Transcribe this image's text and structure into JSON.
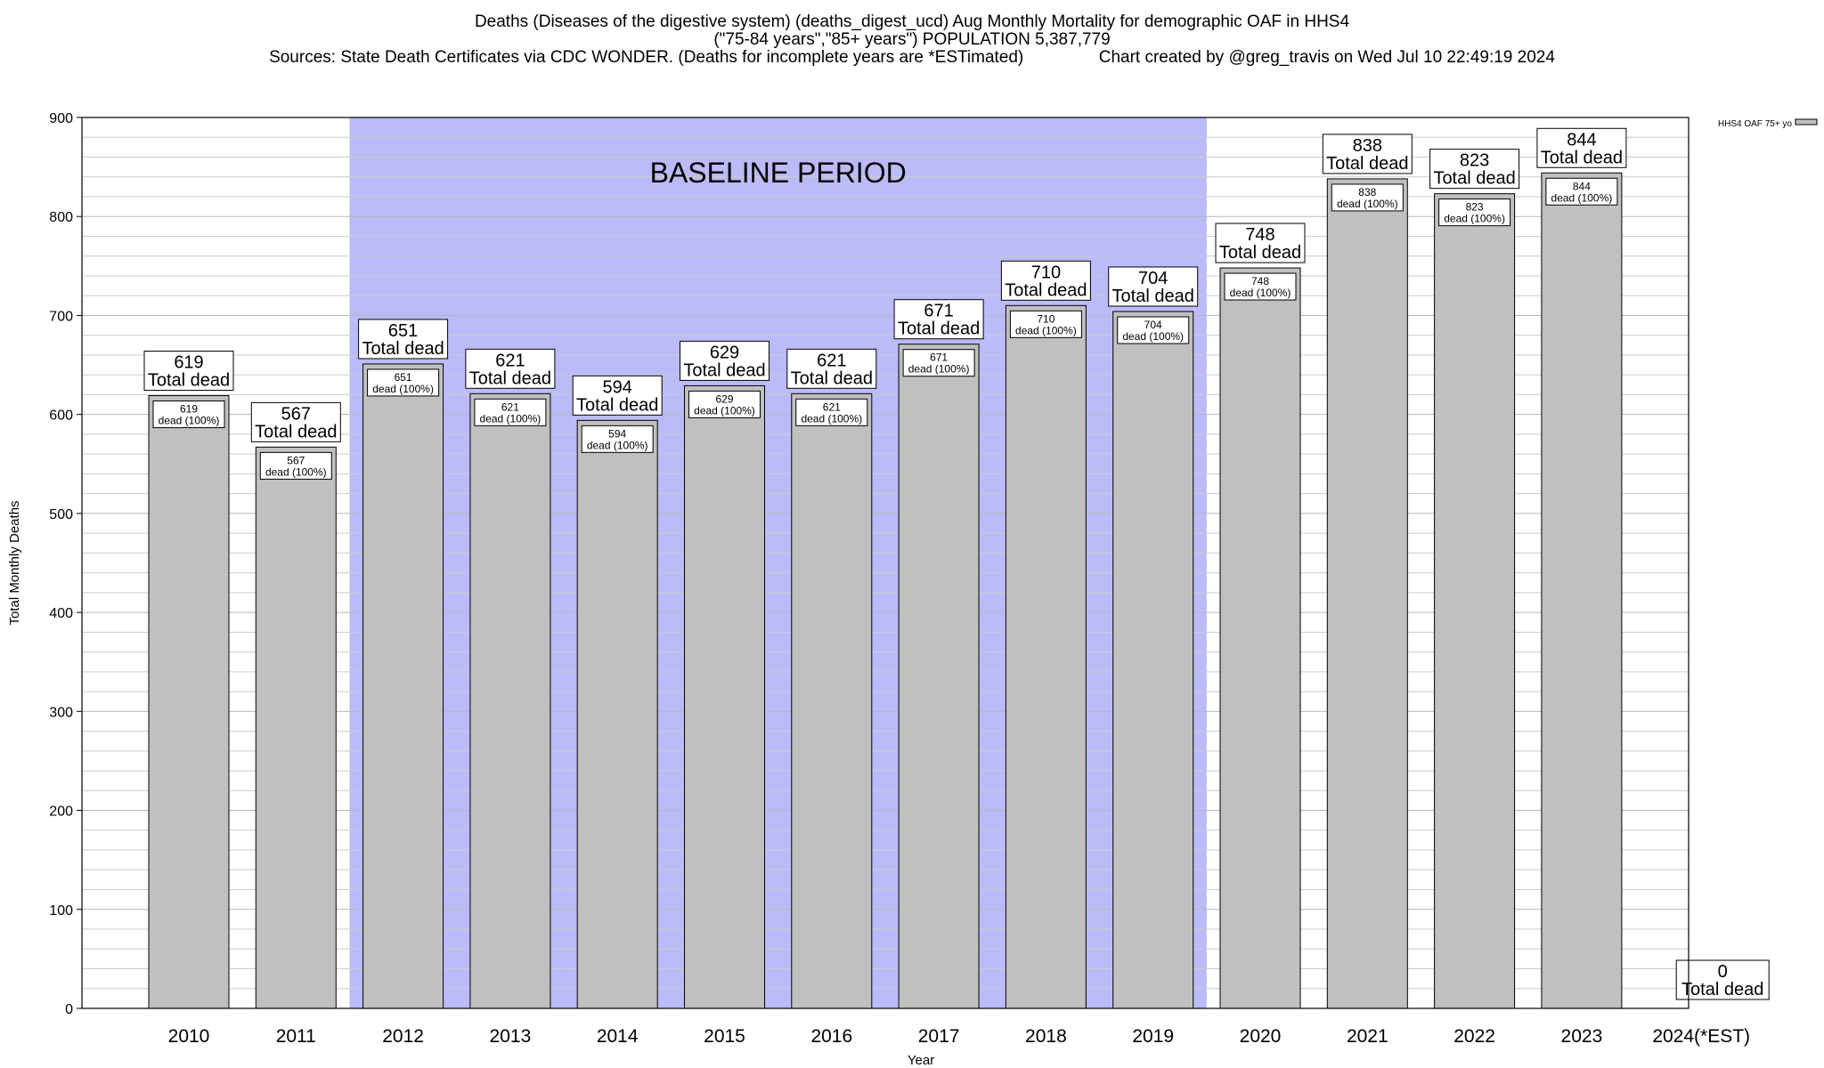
{
  "header": {
    "title_line1": "Deaths (Diseases of the digestive system) (deaths_digest_ucd) Aug Monthly Mortality for demographic OAF in HHS4",
    "title_line2": "(\"75-84 years\",\"85+ years\") POPULATION 5,387,779",
    "title_line3": "Sources: State Death Certificates via CDC WONDER. (Deaths for incomplete years are *ESTimated)                Chart created by @greg_travis on Wed Jul 10 22:49:19 2024"
  },
  "chart_data": {
    "type": "bar",
    "title": "Deaths (Diseases of the digestive system) (deaths_digest_ucd) Aug Monthly Mortality for demographic OAF in HHS4",
    "xlabel": "Year",
    "ylabel": "Total Monthly Deaths",
    "ylim": [
      0,
      900
    ],
    "y_ticks": [
      0,
      100,
      200,
      300,
      400,
      500,
      600,
      700,
      800,
      900
    ],
    "grid": true,
    "legend": {
      "position": "top-right",
      "label": "HHS4 OAF 75+ yo"
    },
    "categories": [
      "2010",
      "2011",
      "2012",
      "2013",
      "2014",
      "2015",
      "2016",
      "2017",
      "2018",
      "2019",
      "2020",
      "2021",
      "2022",
      "2023",
      "2024(*EST)"
    ],
    "series": [
      {
        "name": "HHS4 OAF 75+ yo",
        "values": [
          619,
          567,
          651,
          621,
          594,
          629,
          621,
          671,
          710,
          704,
          748,
          838,
          823,
          844,
          0
        ]
      }
    ],
    "total_label_suffix": "Total dead",
    "inner_label_suffix": "dead (100%)",
    "annotation": {
      "text": "BASELINE PERIOD",
      "from": "2012",
      "to": "2019"
    },
    "colors": {
      "bar": "#c0c0c0",
      "baseline": "#bbbbf9",
      "grid": "#cccccc"
    }
  }
}
